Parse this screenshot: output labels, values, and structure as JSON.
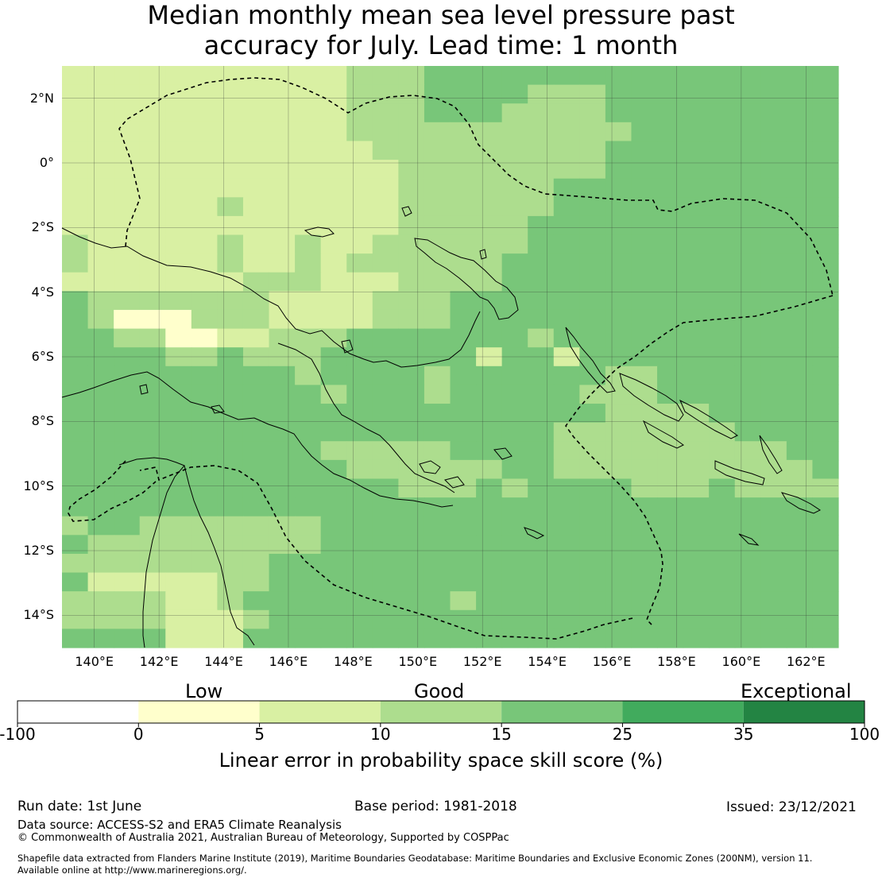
{
  "title": {
    "line1": "Median monthly mean sea level pressure past",
    "line2": "accuracy for July. Lead time: 1 month"
  },
  "map": {
    "lon_labels": [
      "140°E",
      "142°E",
      "144°E",
      "146°E",
      "148°E",
      "150°E",
      "152°E",
      "154°E",
      "156°E",
      "158°E",
      "160°E",
      "162°E"
    ],
    "lat_labels": [
      "2°N",
      "0°",
      "2°S",
      "4°S",
      "6°S",
      "8°S",
      "10°S",
      "12°S",
      "14°S"
    ],
    "extent": {
      "lon": [
        139.0,
        163.0
      ],
      "lat": [
        -15.0,
        3.0
      ]
    },
    "grid": "on",
    "skill_field_summary": "LEPS skill mostly 5-10% (light) in the north-west, 10-15% across the central band and 15-25% over the south and east, with isolated 0-5% cells near 141.5E-143.5E, 5S.",
    "colors": {
      "band_0_5": "#ffffcc",
      "band_5_10": "#d9f0a3",
      "band_10_15": "#addd8e",
      "band_15_25": "#78c679",
      "band_25_35": "#41ab5d",
      "band_35_100": "#238443",
      "coastline": "#000000",
      "eez_boundary": "#000000"
    }
  },
  "colorbar": {
    "categories": [
      "Low",
      "Good",
      "Exceptional"
    ],
    "ticks": [
      "-100",
      "0",
      "5",
      "10",
      "15",
      "25",
      "35",
      "100"
    ],
    "colors": [
      "#ffffff",
      "#ffffcc",
      "#d9f0a3",
      "#addd8e",
      "#78c679",
      "#41ab5d",
      "#238443"
    ],
    "label": "Linear error in probability space skill score (%)"
  },
  "footer": {
    "run_date": "Run date: 1st June",
    "base_period": "Base period: 1981-2018",
    "issued": "Issued: 23/12/2021",
    "data_source": "Data source: ACCESS-S2 and ERA5 Climate Reanalysis",
    "copyright": "© Commonwealth of Australia 2021, Australian Bureau of Meteorology, Supported by COSPPac",
    "shapefile_line1": "Shapefile data extracted from Flanders Marine Institute (2019), Maritime Boundaries Geodatabase: Maritime Boundaries and Exclusive Economic Zones (200NM), version 11.",
    "shapefile_line2": "Available online at http://www.marineregions.org/."
  }
}
